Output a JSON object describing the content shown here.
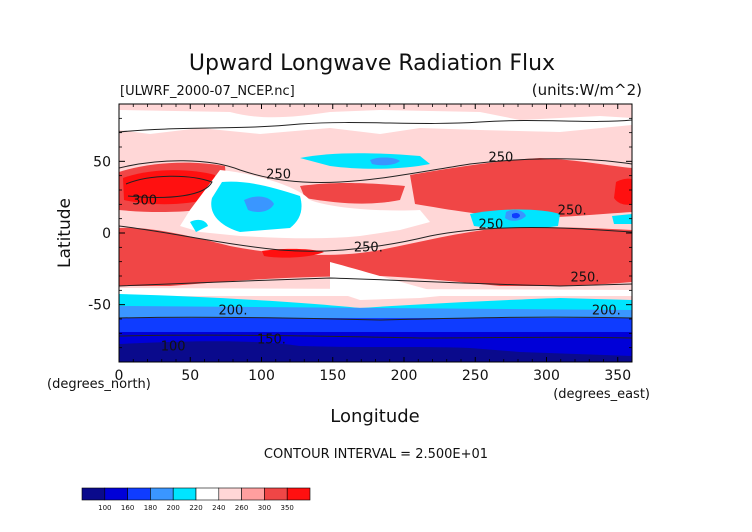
{
  "chart_data": {
    "type": "heatmap",
    "title": "Upward Longwave Radiation Flux",
    "dataset_label": "[ULWRF_2000-07_NCEP.nc]",
    "units_label": "(units:W/m^2)",
    "xlabel": "Longitude",
    "ylabel": "Latitude",
    "x_unit_label": "(degrees_east)",
    "y_unit_label": "(degrees_north)",
    "xlim": [
      0,
      360
    ],
    "ylim": [
      -90,
      90
    ],
    "x_ticks": [
      0,
      50,
      100,
      150,
      200,
      250,
      300,
      350
    ],
    "y_ticks": [
      -50,
      0,
      50
    ],
    "contour_interval_text": "CONTOUR INTERVAL = 2.500E+01",
    "contour_labels": [
      {
        "text": "250",
        "lon": 268,
        "lat": 50
      },
      {
        "text": "250",
        "lon": 112,
        "lat": 38
      },
      {
        "text": "300",
        "lon": 18,
        "lat": 20
      },
      {
        "text": "250.",
        "lon": 318,
        "lat": 13
      },
      {
        "text": "250",
        "lon": 261,
        "lat": 3
      },
      {
        "text": "250.",
        "lon": 175,
        "lat": -13
      },
      {
        "text": "250.",
        "lon": 327,
        "lat": -34
      },
      {
        "text": "200.",
        "lon": 80,
        "lat": -57
      },
      {
        "text": "200.",
        "lon": 342,
        "lat": -57
      },
      {
        "text": "150.",
        "lon": 107,
        "lat": -77
      },
      {
        "text": "100",
        "lon": 38,
        "lat": -82
      }
    ],
    "colorbar": {
      "levels": [
        100,
        160,
        180,
        200,
        220,
        240,
        260,
        300,
        350
      ],
      "colors": [
        "#0a0a8c",
        "#0000d8",
        "#0f3cff",
        "#3a96ff",
        "#00e5ff",
        "#ffffff",
        "#ffd7d7",
        "#ff9f9f",
        "#f04646",
        "#ff1010"
      ]
    },
    "grid": false
  }
}
